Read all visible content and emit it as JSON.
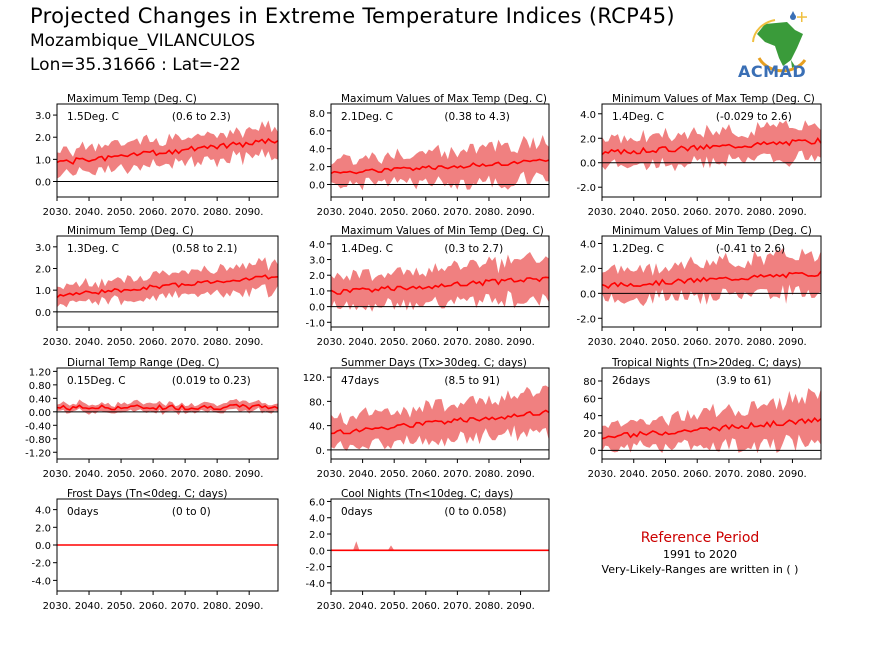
{
  "header": {
    "title": "Projected Changes in Extreme Temperature Indices (RCP45)",
    "location": "Mozambique_VILANCULOS",
    "coords": "Lon=35.31666 : Lat=-22"
  },
  "logo": {
    "text": "ACMAD"
  },
  "reference": {
    "title": "Reference Period",
    "years": "1991 to 2020",
    "note": "Very-Likely-Ranges are written in ( )"
  },
  "colors": {
    "band": "#f08080",
    "line": "#ff0000",
    "zero": "#000000"
  },
  "chart_data": [
    {
      "type": "area",
      "title": "Maximum Temp (Deg. C)",
      "value": "1.5Deg. C",
      "range": "(0.6 to 2.3)",
      "ylim": [
        -0.7,
        3.5
      ],
      "yticks": [
        "3.0",
        "2.0",
        "1.0",
        "0.0"
      ],
      "ytick_vals": [
        3,
        2,
        1,
        0
      ],
      "xticks": [
        "2030.",
        "2040.",
        "2050.",
        "2060.",
        "2070.",
        "2080.",
        "2090."
      ],
      "x_range": [
        2030,
        2099
      ],
      "median": [
        0.85,
        1.85
      ],
      "band": [
        0.5,
        0.6
      ],
      "noise": 0.25,
      "seed": 1
    },
    {
      "type": "area",
      "title": "Maximum Values of Max Temp (Deg. C)",
      "value": "2.1Deg. C",
      "range": "(0.38 to 4.3)",
      "ylim": [
        -1.4,
        9.0
      ],
      "yticks": [
        "8.0",
        "6.0",
        "4.0",
        "2.0",
        "0.0"
      ],
      "ytick_vals": [
        8,
        6,
        4,
        2,
        0
      ],
      "xticks": [
        "2030.",
        "2040.",
        "2050.",
        "2060.",
        "2070.",
        "2080.",
        "2090."
      ],
      "x_range": [
        2030,
        2099
      ],
      "median": [
        1.3,
        2.6
      ],
      "band": [
        1.3,
        2.0
      ],
      "noise": 0.5,
      "seed": 2
    },
    {
      "type": "area",
      "title": "Minimum Values of Max Temp (Deg. C)",
      "value": "1.4Deg. C",
      "range": "(-0.029 to 2.6)",
      "ylim": [
        -2.8,
        4.8
      ],
      "yticks": [
        "4.0",
        "2.0",
        "0.0",
        "-2.0"
      ],
      "ytick_vals": [
        4,
        2,
        0,
        -2
      ],
      "xticks": [
        "2030.",
        "2040.",
        "2050.",
        "2060.",
        "2070.",
        "2080.",
        "2090."
      ],
      "x_range": [
        2030,
        2099
      ],
      "median": [
        0.8,
        1.8
      ],
      "band": [
        1.0,
        1.3
      ],
      "noise": 0.45,
      "seed": 3
    },
    {
      "type": "area",
      "title": "Minimum Temp (Deg. C)",
      "value": "1.3Deg. C",
      "range": "(0.58 to 2.1)",
      "ylim": [
        -0.7,
        3.5
      ],
      "yticks": [
        "3.0",
        "2.0",
        "1.0",
        "0.0"
      ],
      "ytick_vals": [
        3,
        2,
        1,
        0
      ],
      "xticks": [
        "2030.",
        "2040.",
        "2050.",
        "2060.",
        "2070.",
        "2080.",
        "2090."
      ],
      "x_range": [
        2030,
        2099
      ],
      "median": [
        0.75,
        1.65
      ],
      "band": [
        0.4,
        0.6
      ],
      "noise": 0.2,
      "seed": 4
    },
    {
      "type": "area",
      "title": "Maximum Values of Min Temp (Deg. C)",
      "value": "1.4Deg. C",
      "range": "(0.3 to 2.7)",
      "ylim": [
        -1.3,
        4.5
      ],
      "yticks": [
        "4.0",
        "3.0",
        "2.0",
        "1.0",
        "0.0",
        "-1.0"
      ],
      "ytick_vals": [
        4,
        3,
        2,
        1,
        0,
        -1
      ],
      "xticks": [
        "2030.",
        "2040.",
        "2050.",
        "2060.",
        "2070.",
        "2080.",
        "2090."
      ],
      "x_range": [
        2030,
        2099
      ],
      "median": [
        0.9,
        1.8
      ],
      "band": [
        0.9,
        1.2
      ],
      "noise": 0.35,
      "seed": 5
    },
    {
      "type": "area",
      "title": "Minimum Values of Min Temp (Deg. C)",
      "value": "1.2Deg. C",
      "range": "(-0.41 to 2.6)",
      "ylim": [
        -2.7,
        4.6
      ],
      "yticks": [
        "4.0",
        "2.0",
        "0.0",
        "-2.0"
      ],
      "ytick_vals": [
        4,
        2,
        0,
        -2
      ],
      "xticks": [
        "2030.",
        "2040.",
        "2050.",
        "2060.",
        "2070.",
        "2080.",
        "2090."
      ],
      "x_range": [
        2030,
        2099
      ],
      "median": [
        0.6,
        1.6
      ],
      "band": [
        1.1,
        1.5
      ],
      "noise": 0.4,
      "seed": 6
    },
    {
      "type": "area",
      "title": "Diurnal Temp Range (Deg. C)",
      "value": "0.15Deg. C",
      "range": "(0.019 to 0.23)",
      "ylim": [
        -1.4,
        1.3
      ],
      "yticks": [
        "1.20",
        "0.80",
        "0.40",
        "0.00",
        "-0.40",
        "-0.80",
        "-1.20"
      ],
      "ytick_vals": [
        1.2,
        0.8,
        0.4,
        0,
        -0.4,
        -0.8,
        -1.2
      ],
      "xticks": [
        "2030.",
        "2040.",
        "2050.",
        "2060.",
        "2070.",
        "2080.",
        "2090."
      ],
      "x_range": [
        2030,
        2099
      ],
      "median": [
        0.12,
        0.15
      ],
      "band": [
        0.12,
        0.12
      ],
      "noise": 0.15,
      "seed": 7
    },
    {
      "type": "area",
      "title": "Summer Days (Tx>30deg. C; days)",
      "value": "47days",
      "range": "(8.5 to 91)",
      "ylim": [
        -15,
        135
      ],
      "yticks": [
        "120.",
        "80.",
        "40.",
        "0."
      ],
      "ytick_vals": [
        120,
        80,
        40,
        0
      ],
      "xticks": [
        "2030.",
        "2040.",
        "2050.",
        "2060.",
        "2070.",
        "2080.",
        "2090."
      ],
      "x_range": [
        2030,
        2099
      ],
      "median": [
        28,
        62
      ],
      "band": [
        22,
        32
      ],
      "noise": 9,
      "seed": 8
    },
    {
      "type": "area",
      "title": "Tropical Nights (Tn>20deg. C; days)",
      "value": "26days",
      "range": "(3.9 to 61)",
      "ylim": [
        -10,
        95
      ],
      "yticks": [
        "80",
        "60",
        "40",
        "20",
        "0"
      ],
      "ytick_vals": [
        80,
        60,
        40,
        20,
        0
      ],
      "xticks": [
        "2030.",
        "2040.",
        "2050.",
        "2060.",
        "2070.",
        "2080.",
        "2090."
      ],
      "x_range": [
        2030,
        2099
      ],
      "median": [
        15,
        35
      ],
      "band": [
        12,
        25
      ],
      "noise": 6,
      "seed": 9
    },
    {
      "type": "area",
      "title": "Frost Days (Tn<0deg. C; days)",
      "value": "0days",
      "range": "(0 to 0)",
      "ylim": [
        -5.2,
        5.2
      ],
      "yticks": [
        "4.0",
        "2.0",
        "0.0",
        "-2.0",
        "-4.0"
      ],
      "ytick_vals": [
        4,
        2,
        0,
        -2,
        -4
      ],
      "xticks": [
        "2030.",
        "2040.",
        "2050.",
        "2060.",
        "2070.",
        "2080.",
        "2090."
      ],
      "x_range": [
        2030,
        2099
      ],
      "median": [
        0,
        0
      ],
      "band": [
        0,
        0
      ],
      "noise": 0,
      "seed": 10
    },
    {
      "type": "area",
      "title": "Cool Nights (Tn<10deg. C; days)",
      "value": "0days",
      "range": "(0 to 0.058)",
      "ylim": [
        -5.0,
        6.3
      ],
      "yticks": [
        "6.0",
        "4.0",
        "2.0",
        "0.0",
        "-2.0",
        "-4.0"
      ],
      "ytick_vals": [
        6,
        4,
        2,
        0,
        -2,
        -4
      ],
      "xticks": [
        "2030.",
        "2040.",
        "2050.",
        "2060.",
        "2070.",
        "2080.",
        "2090."
      ],
      "x_range": [
        2030,
        2099
      ],
      "median": [
        0,
        0
      ],
      "band": [
        0,
        0
      ],
      "noise": 0,
      "seed": 11,
      "spikes": [
        [
          2038,
          1.1
        ],
        [
          2049,
          0.6
        ]
      ]
    }
  ]
}
